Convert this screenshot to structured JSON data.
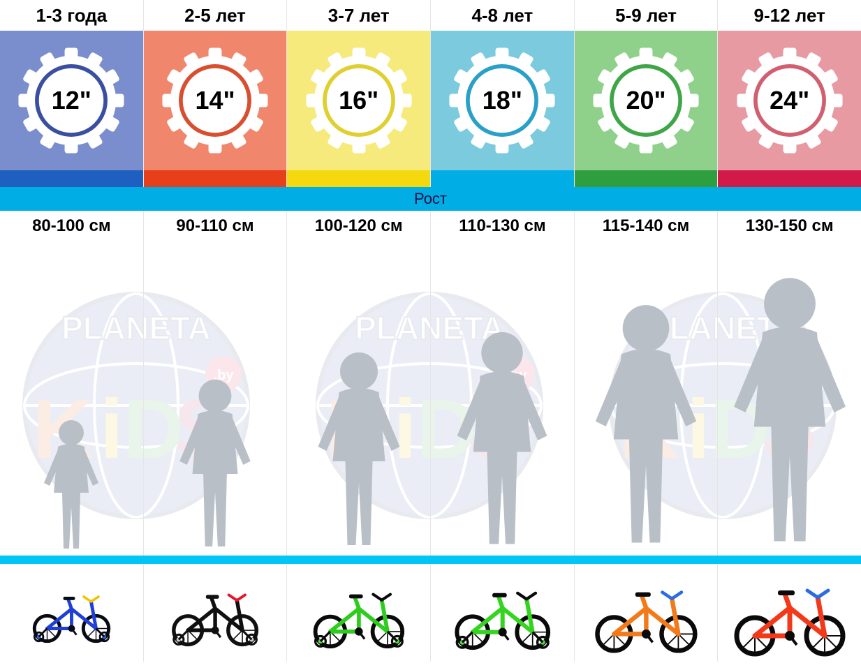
{
  "height_bar_label": "Рост",
  "height_bar_bg": "#00aee5",
  "divider_bg": "#00c6f7",
  "watermark": {
    "text_top": "PLANETA",
    "text_bottom": "KiDS",
    "domain": ".by",
    "globe_color": "#3b5aa3",
    "border_color": "#2a3d6d",
    "k_color": "#e85c00",
    "i_color": "#f0c400",
    "d_color": "#2f9e3f",
    "s_color": "#c2185b"
  },
  "columns": [
    {
      "age": "1-3 года",
      "size": "12\"",
      "height": "80-100 см",
      "tile_bg": "#7a8dcc",
      "accent_bg": "#1f5fbf",
      "ring_stroke": "#3a4fa0",
      "silhouette_height": 200,
      "bike": {
        "frame": "#1e3fd8",
        "wheel": "#0a0a14",
        "training_wheel": "#2a6de0",
        "accent": "#f0c400",
        "scale": 0.7
      }
    },
    {
      "age": "2-5 лет",
      "size": "14\"",
      "height": "90-110 см",
      "tile_bg": "#f0866b",
      "accent_bg": "#e63f1a",
      "ring_stroke": "#d84f30",
      "silhouette_height": 260,
      "bike": {
        "frame": "#101010",
        "wheel": "#101010",
        "training_wheel": "#d0d0d0",
        "accent": "#e8152a",
        "scale": 0.78
      }
    },
    {
      "age": "3-7 лет",
      "size": "16\"",
      "height": "100-120 см",
      "tile_bg": "#f7ea7d",
      "accent_bg": "#f4d90f",
      "ring_stroke": "#e0cf30",
      "silhouette_height": 300,
      "bike": {
        "frame": "#2ecc1e",
        "wheel": "#0a0a0a",
        "training_wheel": "#4de03a",
        "accent": "#0a0a0a",
        "scale": 0.82
      }
    },
    {
      "age": "4-8 лет",
      "size": "18\"",
      "height": "110-130 см",
      "tile_bg": "#7bcadd",
      "accent_bg": "#00aee5",
      "ring_stroke": "#2aa0c8",
      "silhouette_height": 330,
      "bike": {
        "frame": "#34d420",
        "wheel": "#0a0a0a",
        "training_wheel": "#4de03a",
        "accent": "#0a0a0a",
        "scale": 0.86
      }
    },
    {
      "age": "5-9 лет",
      "size": "20\"",
      "height": "115-140 см",
      "tile_bg": "#8fd18a",
      "accent_bg": "#2f9e3f",
      "ring_stroke": "#3fa648",
      "silhouette_height": 370,
      "bike": {
        "frame": "#f27a1a",
        "wheel": "#0a0a0a",
        "training_wheel": null,
        "accent": "#2a6de0",
        "scale": 0.92
      }
    },
    {
      "age": "9-12 лет",
      "size": "24\"",
      "height": "130-150 см",
      "tile_bg": "#e89aa3",
      "accent_bg": "#d11a4a",
      "ring_stroke": "#d15f70",
      "silhouette_height": 410,
      "bike": {
        "frame": "#f23a1a",
        "wheel": "#0a0a0a",
        "training_wheel": null,
        "accent": "#2a6de0",
        "scale": 1.0
      }
    }
  ]
}
